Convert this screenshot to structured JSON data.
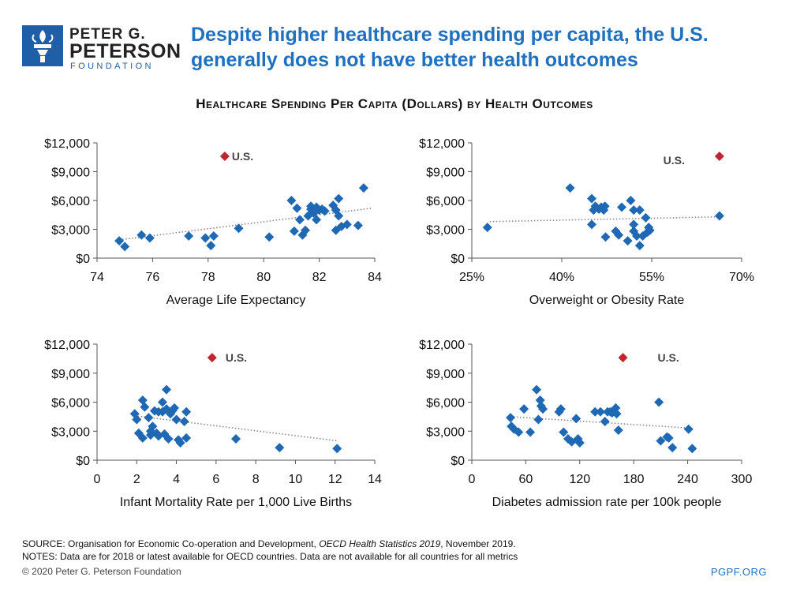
{
  "header": {
    "logo_line1": "PETER G.",
    "logo_line2": "PETERSON",
    "logo_line3": "FOUNDATION",
    "headline": "Despite higher healthcare spending per capita, the U.S. generally does not have better health outcomes",
    "chart_group_title": "Healthcare Spending Per Capita (Dollars) by Health Outcomes"
  },
  "colors": {
    "brand_blue": "#1f70bf",
    "point": "#1f68b4",
    "us_point": "#c0272d",
    "trend": "#888888"
  },
  "chart_data": [
    {
      "type": "scatter",
      "xlabel": "Average Life Expectancy",
      "ylabel": "",
      "xlim": [
        74,
        84
      ],
      "ylim": [
        0,
        12000
      ],
      "xticks": [
        "74",
        "76",
        "78",
        "80",
        "82",
        "84"
      ],
      "yticks": [
        "$0",
        "$3,000",
        "$6,000",
        "$9,000",
        "$12,000"
      ],
      "us_label": "U.S.",
      "us_point": {
        "x": 78.6,
        "y": 10600
      },
      "trendline": [
        [
          74.8,
          1900
        ],
        [
          83.9,
          5200
        ]
      ],
      "points": [
        [
          74.8,
          1800
        ],
        [
          75.0,
          1200
        ],
        [
          75.6,
          2400
        ],
        [
          75.9,
          2100
        ],
        [
          77.3,
          2300
        ],
        [
          77.9,
          2100
        ],
        [
          78.1,
          1300
        ],
        [
          78.2,
          2300
        ],
        [
          79.1,
          3100
        ],
        [
          80.2,
          2200
        ],
        [
          81.0,
          6000
        ],
        [
          81.1,
          2800
        ],
        [
          81.2,
          5200
        ],
        [
          81.3,
          4000
        ],
        [
          81.4,
          2400
        ],
        [
          81.5,
          2900
        ],
        [
          81.6,
          4400
        ],
        [
          81.7,
          5100
        ],
        [
          81.7,
          5400
        ],
        [
          81.8,
          4700
        ],
        [
          81.9,
          5300
        ],
        [
          81.9,
          4000
        ],
        [
          82.0,
          5000
        ],
        [
          82.1,
          5100
        ],
        [
          82.2,
          4900
        ],
        [
          82.5,
          5500
        ],
        [
          82.6,
          5000
        ],
        [
          82.6,
          2900
        ],
        [
          82.7,
          6200
        ],
        [
          82.7,
          4400
        ],
        [
          82.8,
          3300
        ],
        [
          83.0,
          3500
        ],
        [
          83.4,
          3400
        ],
        [
          83.6,
          7300
        ]
      ]
    },
    {
      "type": "scatter",
      "xlabel": "Overweight or Obesity Rate",
      "ylabel": "",
      "xlim": [
        25,
        70
      ],
      "ylim": [
        0,
        12000
      ],
      "xticks": [
        "25%",
        "40%",
        "55%",
        "70%"
      ],
      "yticks": [
        "$0",
        "$3,000",
        "$6,000",
        "$9,000",
        "$12,000"
      ],
      "us_label": "U.S.",
      "us_point": {
        "x": 66.3,
        "y": 10600
      },
      "trendline": [
        [
          28.0,
          3800
        ],
        [
          66.3,
          4300
        ]
      ],
      "points": [
        [
          27.6,
          3200
        ],
        [
          41.4,
          7300
        ],
        [
          45.0,
          6200
        ],
        [
          45.0,
          3500
        ],
        [
          45.3,
          5000
        ],
        [
          45.6,
          5400
        ],
        [
          46.2,
          5100
        ],
        [
          46.6,
          5300
        ],
        [
          47.0,
          5000
        ],
        [
          47.2,
          5400
        ],
        [
          47.3,
          2200
        ],
        [
          49.0,
          2800
        ],
        [
          49.5,
          2400
        ],
        [
          50.0,
          5300
        ],
        [
          51.0,
          1800
        ],
        [
          51.5,
          6000
        ],
        [
          52.0,
          2800
        ],
        [
          52.0,
          3500
        ],
        [
          52.0,
          5000
        ],
        [
          52.5,
          2300
        ],
        [
          53.0,
          1300
        ],
        [
          53.0,
          5000
        ],
        [
          53.5,
          2300
        ],
        [
          54.0,
          4200
        ],
        [
          54.3,
          2700
        ],
        [
          54.5,
          3200
        ],
        [
          54.7,
          2900
        ],
        [
          66.3,
          4400
        ]
      ]
    },
    {
      "type": "scatter",
      "xlabel": "Infant Mortality Rate per 1,000 Live Births",
      "ylabel": "",
      "xlim": [
        0,
        14
      ],
      "ylim": [
        0,
        12000
      ],
      "xticks": [
        "0",
        "2",
        "4",
        "6",
        "8",
        "10",
        "12",
        "14"
      ],
      "yticks": [
        "$0",
        "$3,000",
        "$6,000",
        "$9,000",
        "$12,000"
      ],
      "us_label": "U.S.",
      "us_point": {
        "x": 5.8,
        "y": 10600
      },
      "trendline": [
        [
          1.9,
          4600
        ],
        [
          12.1,
          2000
        ]
      ],
      "points": [
        [
          1.9,
          4800
        ],
        [
          2.0,
          4200
        ],
        [
          2.1,
          2800
        ],
        [
          2.3,
          2300
        ],
        [
          2.3,
          6200
        ],
        [
          2.4,
          5500
        ],
        [
          2.6,
          4400
        ],
        [
          2.7,
          3000
        ],
        [
          2.7,
          2600
        ],
        [
          2.8,
          3500
        ],
        [
          2.9,
          5100
        ],
        [
          3.0,
          2800
        ],
        [
          3.1,
          5000
        ],
        [
          3.1,
          2500
        ],
        [
          3.3,
          6000
        ],
        [
          3.3,
          5000
        ],
        [
          3.4,
          2700
        ],
        [
          3.5,
          7300
        ],
        [
          3.5,
          5300
        ],
        [
          3.6,
          2200
        ],
        [
          3.7,
          4800
        ],
        [
          3.8,
          5100
        ],
        [
          3.9,
          5400
        ],
        [
          4.0,
          4200
        ],
        [
          4.1,
          2100
        ],
        [
          4.2,
          1800
        ],
        [
          4.4,
          4000
        ],
        [
          4.5,
          5000
        ],
        [
          4.5,
          2300
        ],
        [
          7.0,
          2200
        ],
        [
          9.2,
          1300
        ],
        [
          12.1,
          1200
        ]
      ]
    },
    {
      "type": "scatter",
      "xlabel": "Diabetes admission rate per 100k people",
      "ylabel": "",
      "xlim": [
        0,
        300
      ],
      "ylim": [
        0,
        12000
      ],
      "xticks": [
        "0",
        "60",
        "120",
        "180",
        "240",
        "300"
      ],
      "yticks": [
        "$0",
        "$3,000",
        "$6,000",
        "$9,000",
        "$12,000"
      ],
      "us_label": "U.S.",
      "us_point": {
        "x": 168,
        "y": 10600
      },
      "trendline": [
        [
          43,
          4500
        ],
        [
          245,
          3300
        ]
      ],
      "points": [
        [
          43,
          4400
        ],
        [
          44,
          3500
        ],
        [
          47,
          3200
        ],
        [
          52,
          2900
        ],
        [
          58,
          5300
        ],
        [
          65,
          2900
        ],
        [
          72,
          7300
        ],
        [
          74,
          4200
        ],
        [
          76,
          6200
        ],
        [
          77,
          5600
        ],
        [
          79,
          5300
        ],
        [
          97,
          5000
        ],
        [
          99,
          5300
        ],
        [
          102,
          2900
        ],
        [
          107,
          2200
        ],
        [
          111,
          1900
        ],
        [
          116,
          4300
        ],
        [
          118,
          2200
        ],
        [
          120,
          1800
        ],
        [
          137,
          5000
        ],
        [
          143,
          5000
        ],
        [
          148,
          4000
        ],
        [
          151,
          5000
        ],
        [
          154,
          5000
        ],
        [
          156,
          4900
        ],
        [
          160,
          5400
        ],
        [
          161,
          4800
        ],
        [
          163,
          3100
        ],
        [
          208,
          6000
        ],
        [
          210,
          2000
        ],
        [
          217,
          2400
        ],
        [
          219,
          2300
        ],
        [
          223,
          1300
        ],
        [
          241,
          3200
        ],
        [
          245,
          1200
        ]
      ]
    }
  ],
  "footer": {
    "source_prefix": "SOURCE: Organisation for Economic Co-operation and Development, ",
    "source_title": "OECD Health Statistics 2019",
    "source_suffix": ", November 2019.",
    "notes": "NOTES: Data are for 2018 or latest available for OECD countries. Data are not available for all countries for all metrics",
    "copyright": "© 2020 Peter G. Peterson Foundation",
    "site": "PGPF.ORG"
  }
}
